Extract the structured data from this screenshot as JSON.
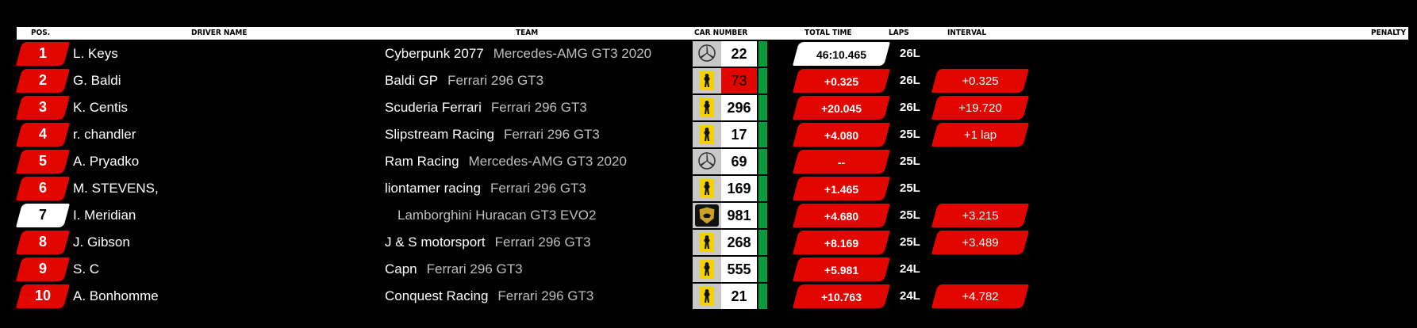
{
  "headers": {
    "pos": "POS.",
    "driver": "DRIVER NAME",
    "team": "TEAM",
    "car_number": "CAR NUMBER",
    "total_time": "TOTAL TIME",
    "laps": "LAPS",
    "interval": "INTERVAL",
    "penalty": "PENALTY"
  },
  "colors": {
    "accent_red": "#e10600",
    "green": "#0a9a3c",
    "header_bg": "#ffffff",
    "background": "#000000"
  },
  "rows": [
    {
      "pos": "1",
      "driver": "L. Keys",
      "team": "Cyberpunk 2077",
      "car": "Mercedes-AMG GT3 2020",
      "number": "22",
      "brand": "mercedes-icon",
      "total": "46:10.465",
      "laps": "26L",
      "interval": "",
      "highlight_pos": false,
      "highlight_total": true,
      "red_number": false
    },
    {
      "pos": "2",
      "driver": "G. Baldi",
      "team": "Baldi GP",
      "car": "Ferrari 296 GT3",
      "number": "73",
      "brand": "ferrari-icon",
      "total": "+0.325",
      "laps": "26L",
      "interval": "+0.325",
      "highlight_pos": false,
      "highlight_total": false,
      "red_number": true
    },
    {
      "pos": "3",
      "driver": "K. Centis",
      "team": "Scuderia Ferrari",
      "car": "Ferrari 296 GT3",
      "number": "296",
      "brand": "ferrari-icon",
      "total": "+20.045",
      "laps": "26L",
      "interval": "+19.720",
      "highlight_pos": false,
      "highlight_total": false,
      "red_number": false
    },
    {
      "pos": "4",
      "driver": "r. chandler",
      "team": "Slipstream Racing",
      "car": "Ferrari 296 GT3",
      "number": "17",
      "brand": "ferrari-icon",
      "total": "+4.080",
      "laps": "25L",
      "interval": "+1 lap",
      "highlight_pos": false,
      "highlight_total": false,
      "red_number": false
    },
    {
      "pos": "5",
      "driver": "A. Pryadko",
      "team": "Ram Racing",
      "car": "Mercedes-AMG GT3 2020",
      "number": "69",
      "brand": "mercedes-icon",
      "total": "--",
      "laps": "25L",
      "interval": "",
      "highlight_pos": false,
      "highlight_total": false,
      "red_number": false
    },
    {
      "pos": "6",
      "driver": "M. STEVENS,",
      "team": "liontamer racing",
      "car": "Ferrari 296 GT3",
      "number": "169",
      "brand": "ferrari-icon",
      "total": "+1.465",
      "laps": "25L",
      "interval": "",
      "highlight_pos": false,
      "highlight_total": false,
      "red_number": false
    },
    {
      "pos": "7",
      "driver": "I. Meridian",
      "team": "",
      "car": "Lamborghini Huracan GT3 EVO2",
      "number": "981",
      "brand": "lamborghini-icon",
      "total": "+4.680",
      "laps": "25L",
      "interval": "+3.215",
      "highlight_pos": true,
      "highlight_total": false,
      "red_number": false
    },
    {
      "pos": "8",
      "driver": "J. Gibson",
      "team": "J & S motorsport",
      "car": "Ferrari 296 GT3",
      "number": "268",
      "brand": "ferrari-icon",
      "total": "+8.169",
      "laps": "25L",
      "interval": "+3.489",
      "highlight_pos": false,
      "highlight_total": false,
      "red_number": false
    },
    {
      "pos": "9",
      "driver": "S. C",
      "team": "Capn",
      "car": "Ferrari 296 GT3",
      "number": "555",
      "brand": "ferrari-icon",
      "total": "+5.981",
      "laps": "24L",
      "interval": "",
      "highlight_pos": false,
      "highlight_total": false,
      "red_number": false
    },
    {
      "pos": "10",
      "driver": "A. Bonhomme",
      "team": "Conquest Racing",
      "car": "Ferrari 296 GT3",
      "number": "21",
      "brand": "ferrari-icon",
      "total": "+10.763",
      "laps": "24L",
      "interval": "+4.782",
      "highlight_pos": false,
      "highlight_total": false,
      "red_number": false
    }
  ]
}
